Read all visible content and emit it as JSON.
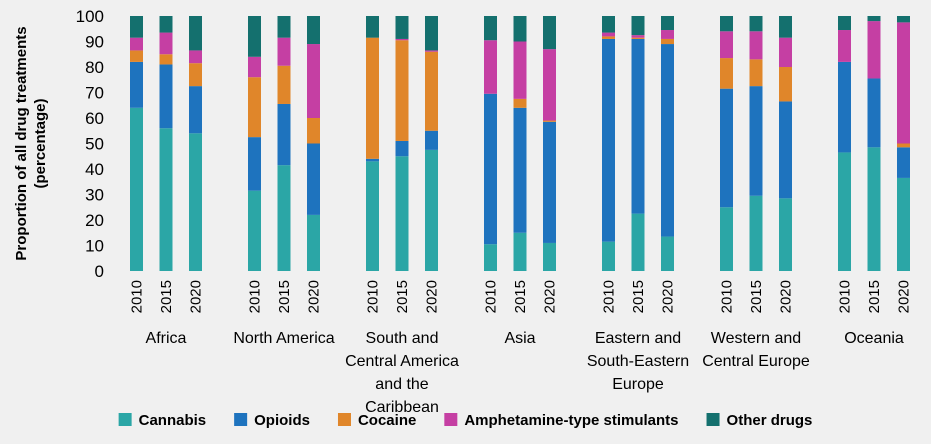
{
  "chart_data": {
    "type": "bar",
    "stacked": true,
    "ylabel": "Proportion of all drug treatments (percentage)",
    "ylim": [
      0,
      100
    ],
    "yticks": [
      0,
      10,
      20,
      30,
      40,
      50,
      60,
      70,
      80,
      90,
      100
    ],
    "grid": false,
    "legend_position": "bottom",
    "groups": [
      {
        "label": "Africa",
        "years": [
          "2010",
          "2015",
          "2020"
        ]
      },
      {
        "label": "North America",
        "years": [
          "2010",
          "2015",
          "2020"
        ]
      },
      {
        "label": "South and Central America and the Caribbean",
        "years": [
          "2010",
          "2015",
          "2020"
        ]
      },
      {
        "label": "Asia",
        "years": [
          "2010",
          "2015",
          "2020"
        ]
      },
      {
        "label": "Eastern and South-Eastern Europe",
        "years": [
          "2010",
          "2015",
          "2020"
        ]
      },
      {
        "label": "Western and Central Europe",
        "years": [
          "2010",
          "2015",
          "2020"
        ]
      },
      {
        "label": "Oceania",
        "years": [
          "2010",
          "2015",
          "2020"
        ]
      }
    ],
    "series": [
      {
        "name": "Cannabis",
        "color": "#2ba6a6",
        "values": [
          64,
          56,
          54,
          31.5,
          41.5,
          22,
          43,
          45,
          47.5,
          10.5,
          15,
          11,
          11.5,
          22.5,
          13.5,
          25,
          29.5,
          28.5,
          46.5,
          48.5,
          36.5
        ]
      },
      {
        "name": "Opioids",
        "color": "#1e73be",
        "values": [
          18,
          25,
          18.5,
          21,
          24,
          28,
          1,
          6,
          7.5,
          59,
          49,
          47.5,
          79.5,
          68.5,
          75.5,
          46.5,
          43,
          38,
          35.5,
          27,
          12
        ]
      },
      {
        "name": "Cocaine",
        "color": "#e0862a",
        "values": [
          4.5,
          4,
          9,
          23.5,
          15,
          10,
          47.5,
          39.5,
          31,
          0,
          3.5,
          0.5,
          1,
          0.5,
          2,
          12,
          10.5,
          13.5,
          0,
          0,
          1.5
        ]
      },
      {
        "name": "Amphetamine-type stimulants",
        "color": "#c53fa3",
        "values": [
          5,
          8.5,
          5,
          8,
          11,
          29,
          0,
          0.5,
          0.5,
          21,
          22.5,
          28,
          1.5,
          1,
          3.5,
          10.5,
          11,
          11.5,
          12.5,
          22.5,
          47.5
        ]
      },
      {
        "name": "Other drugs",
        "color": "#14706e",
        "values": [
          8.5,
          6.5,
          13.5,
          16,
          8.5,
          11,
          8.5,
          9,
          13.5,
          9.5,
          10,
          13,
          6.5,
          7.5,
          5.5,
          6,
          6,
          8.5,
          5.5,
          2,
          2.5
        ]
      }
    ]
  }
}
